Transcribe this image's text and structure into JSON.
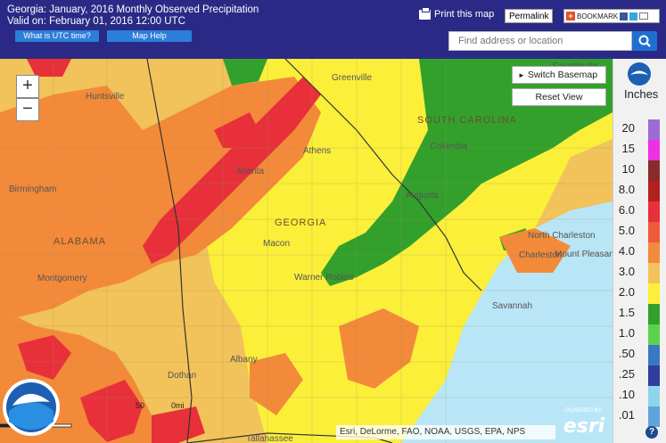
{
  "header": {
    "title_line1": "Georgia: January, 2016 Monthly Observed Precipitation",
    "title_line2": "Valid on: February 01, 2016 12:00 UTC",
    "utc_button": "What is UTC time?",
    "map_help_button": "Map Help",
    "print_label": "Print this map",
    "permalink_label": "Permalink",
    "bookmark_label": "BOOKMARK",
    "search_placeholder": "Find address or location"
  },
  "map": {
    "switch_basemap": "Switch Basemap",
    "reset_view": "Reset View",
    "zoom_in": "+",
    "zoom_out": "−",
    "attribution": "Esri, DeLorme, FAO, NOAA, USGS, EPA, NPS",
    "esri_logo": "esri",
    "esri_powered": "POWERED BY",
    "scale_label": "50",
    "scale_unit": "0mi",
    "places": [
      {
        "name": "Fayetteville"
      },
      {
        "name": "Huntsville"
      },
      {
        "name": "Greenville"
      },
      {
        "name": "SOUTH CAROLINA"
      },
      {
        "name": "Columbia"
      },
      {
        "name": "Atlanta"
      },
      {
        "name": "Athens"
      },
      {
        "name": "Augusta"
      },
      {
        "name": "Birmingham"
      },
      {
        "name": "GEORGIA"
      },
      {
        "name": "ALABAMA"
      },
      {
        "name": "Macon"
      },
      {
        "name": "Warner Robins"
      },
      {
        "name": "North Charleston"
      },
      {
        "name": "Charleston"
      },
      {
        "name": "Mount Pleasant"
      },
      {
        "name": "Montgomery"
      },
      {
        "name": "Savannah"
      },
      {
        "name": "Albany"
      },
      {
        "name": "Dothan"
      },
      {
        "name": "Tallahassee"
      }
    ]
  },
  "legend": {
    "title": "Inches",
    "items": [
      {
        "label": "20",
        "color": "#9c6bd6"
      },
      {
        "label": "15",
        "color": "#ef2fe6"
      },
      {
        "label": "10",
        "color": "#8a2b2b"
      },
      {
        "label": "8.0",
        "color": "#b32020"
      },
      {
        "label": "6.0",
        "color": "#e8303a"
      },
      {
        "label": "5.0",
        "color": "#ee5a3a"
      },
      {
        "label": "4.0",
        "color": "#f28a3a"
      },
      {
        "label": "3.0",
        "color": "#f1c35a"
      },
      {
        "label": "2.0",
        "color": "#fbef3a"
      },
      {
        "label": "1.5",
        "color": "#33a02c"
      },
      {
        "label": "1.0",
        "color": "#5bd24e"
      },
      {
        "label": ".50",
        "color": "#3b78c4"
      },
      {
        "label": ".25",
        "color": "#2f3d9e"
      },
      {
        "label": ".10",
        "color": "#8fd3ec"
      },
      {
        "label": ".01",
        "color": "#60a4dc"
      }
    ],
    "help": "?"
  }
}
